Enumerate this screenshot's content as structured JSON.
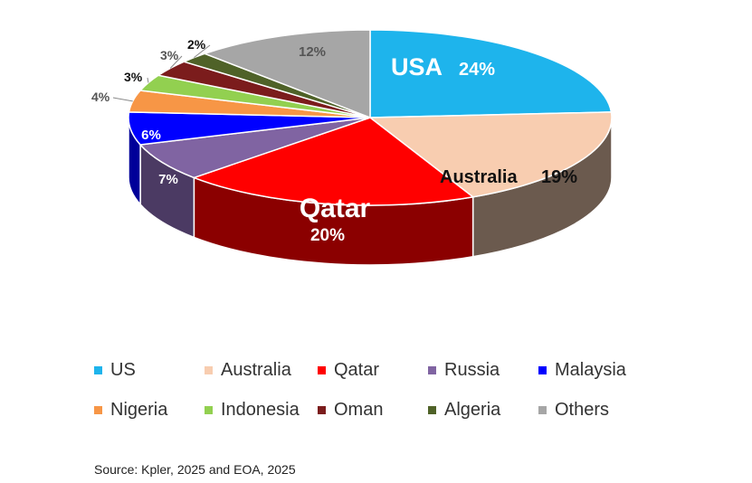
{
  "chart_data": {
    "type": "pie",
    "title": "",
    "series": [
      {
        "name": "US",
        "slice_label": "USA",
        "value": 24,
        "label": "24%",
        "color": "#1EB4EC",
        "side_color": "#1278A0"
      },
      {
        "name": "Australia",
        "slice_label": "Australia",
        "value": 19,
        "label": "19%",
        "color": "#F8CDB0",
        "side_color": "#6B5A4E"
      },
      {
        "name": "Qatar",
        "slice_label": "Qatar",
        "value": 20,
        "label": "20%",
        "color": "#FF0000",
        "side_color": "#8B0000"
      },
      {
        "name": "Russia",
        "value": 7,
        "label": "7%",
        "color": "#8064A2",
        "side_color": "#4B3A63"
      },
      {
        "name": "Malaysia",
        "value": 6,
        "label": "6%",
        "color": "#0000FF",
        "side_color": "#000099"
      },
      {
        "name": "Nigeria",
        "value": 4,
        "label": "4%",
        "color": "#F79646",
        "side_color": "#A8602A"
      },
      {
        "name": "Indonesia",
        "value": 3,
        "label": "3%",
        "color": "#92D050",
        "side_color": "#5E8A30"
      },
      {
        "name": "Oman",
        "value": 3,
        "label": "3%",
        "color": "#7B1C1C",
        "side_color": "#4A0F0F"
      },
      {
        "name": "Algeria",
        "value": 2,
        "label": "2%",
        "color": "#4F6228",
        "side_color": "#2F3B18"
      },
      {
        "name": "Others",
        "value": 12,
        "label": "12%",
        "color": "#A6A6A6",
        "side_color": "#6E6E6E"
      }
    ],
    "legend_position": "bottom"
  },
  "legend": [
    {
      "label": "US",
      "color": "#1EB4EC"
    },
    {
      "label": "Australia",
      "color": "#F8CDB0"
    },
    {
      "label": "Qatar",
      "color": "#FF0000"
    },
    {
      "label": "Russia",
      "color": "#8064A2"
    },
    {
      "label": "Malaysia",
      "color": "#0000FF"
    },
    {
      "label": "Nigeria",
      "color": "#F79646"
    },
    {
      "label": "Indonesia",
      "color": "#92D050"
    },
    {
      "label": "Oman",
      "color": "#7B1C1C"
    },
    {
      "label": "Algeria",
      "color": "#4F6228"
    },
    {
      "label": "Others",
      "color": "#A6A6A6"
    }
  ],
  "source": "Source: Kpler, 2025 and EOA, 2025"
}
